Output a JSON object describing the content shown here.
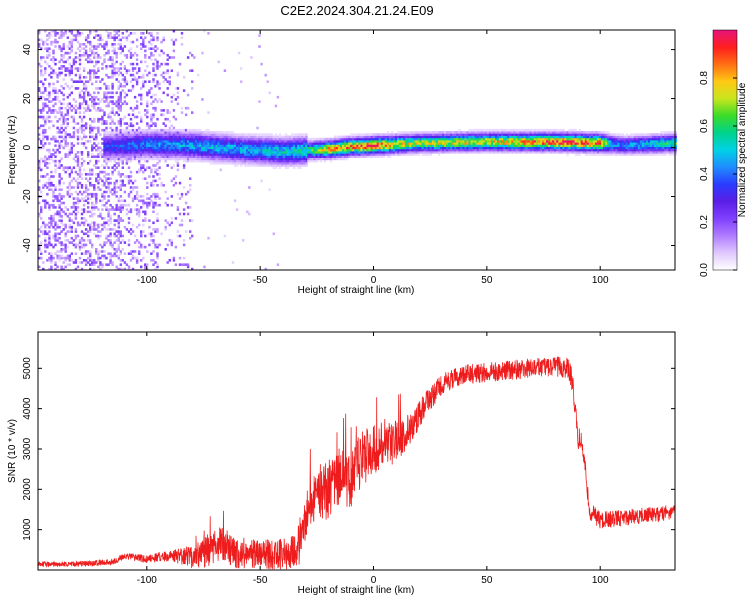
{
  "figure": {
    "title": "C2E2.2024.304.21.24.E09"
  },
  "colors": {
    "snr_line": "#ee1c1c",
    "background": "#ffffff",
    "frame": "#000000",
    "colormap": [
      "#ffffff",
      "#e0c8ff",
      "#b07cff",
      "#8040ff",
      "#5a1ee6",
      "#2a3cff",
      "#1f8cff",
      "#00d2e6",
      "#00d28c",
      "#3cdc28",
      "#c8e61e",
      "#ffc814",
      "#ff6e14",
      "#ff1e1e",
      "#e6147c"
    ]
  },
  "chart_data": [
    {
      "type": "heatmap",
      "title": "",
      "xlabel": "Height of straight line (km)",
      "ylabel": "Frequency (Hz)",
      "xlim": [
        -148,
        133
      ],
      "ylim": [
        -50,
        48
      ],
      "xticks": [
        -100,
        -50,
        0,
        50,
        100
      ],
      "yticks": [
        -40,
        -20,
        0,
        20,
        40
      ],
      "colorbar": {
        "label": "Normalized spectral amplitude",
        "range": [
          0,
          1
        ],
        "ticks": [
          0.0,
          0.2,
          0.4,
          0.6,
          0.8
        ]
      },
      "ridge": {
        "description_x_start": -120,
        "center_freq_hz": [
          [
            -120,
            0.0
          ],
          [
            -100,
            1.0
          ],
          [
            -80,
            0.5
          ],
          [
            -60,
            -1.0
          ],
          [
            -40,
            -2.0
          ],
          [
            -30,
            -1.5
          ],
          [
            -20,
            -1.0
          ],
          [
            -10,
            0.0
          ],
          [
            0,
            0.5
          ],
          [
            10,
            1.0
          ],
          [
            20,
            1.5
          ],
          [
            50,
            2.0
          ],
          [
            80,
            2.0
          ],
          [
            100,
            1.5
          ],
          [
            110,
            0.5
          ],
          [
            133,
            1.5
          ]
        ],
        "peak_amplitude": [
          [
            -120,
            0.35
          ],
          [
            -100,
            0.45
          ],
          [
            -80,
            0.5
          ],
          [
            -60,
            0.5
          ],
          [
            -40,
            0.55
          ],
          [
            -30,
            0.6
          ],
          [
            -20,
            0.85
          ],
          [
            -10,
            0.9
          ],
          [
            0,
            0.95
          ],
          [
            10,
            0.8
          ],
          [
            20,
            0.75
          ],
          [
            50,
            0.8
          ],
          [
            80,
            0.95
          ],
          [
            90,
            0.95
          ],
          [
            100,
            0.9
          ],
          [
            105,
            0.5
          ],
          [
            110,
            0.45
          ],
          [
            133,
            0.65
          ]
        ],
        "noise_region_x": [
          -148,
          -80
        ]
      }
    },
    {
      "type": "line",
      "title": "",
      "xlabel": "Height of straight line (km)",
      "ylabel": "SNR (10 * v/v)",
      "xlim": [
        -148,
        133
      ],
      "ylim": [
        0,
        5900
      ],
      "xticks": [
        -100,
        -50,
        0,
        50,
        100
      ],
      "yticks": [
        1000,
        2000,
        3000,
        4000,
        5000
      ],
      "series": [
        {
          "envelope": [
            [
              -148,
              200
            ],
            [
              -130,
              220
            ],
            [
              -115,
              280
            ],
            [
              -110,
              420
            ],
            [
              -100,
              380
            ],
            [
              -90,
              480
            ],
            [
              -80,
              620
            ],
            [
              -72,
              900
            ],
            [
              -68,
              1100
            ],
            [
              -60,
              820
            ],
            [
              -50,
              750
            ],
            [
              -42,
              780
            ],
            [
              -36,
              900
            ],
            [
              -32,
              1200
            ],
            [
              -28,
              2400
            ],
            [
              -20,
              2700
            ],
            [
              -15,
              3100
            ],
            [
              -10,
              3000
            ],
            [
              -5,
              3500
            ],
            [
              0,
              3600
            ],
            [
              5,
              3800
            ],
            [
              10,
              3700
            ],
            [
              15,
              3900
            ],
            [
              20,
              4200
            ],
            [
              25,
              4550
            ],
            [
              30,
              4850
            ],
            [
              35,
              5000
            ],
            [
              40,
              5100
            ],
            [
              50,
              5150
            ],
            [
              60,
              5200
            ],
            [
              70,
              5250
            ],
            [
              80,
              5300
            ],
            [
              86,
              5250
            ],
            [
              88,
              4900
            ],
            [
              90,
              3600
            ],
            [
              92,
              3400
            ],
            [
              94,
              2500
            ],
            [
              95,
              1700
            ],
            [
              100,
              1450
            ],
            [
              110,
              1500
            ],
            [
              120,
              1550
            ],
            [
              133,
              1600
            ]
          ],
          "noise_amplitude": [
            [
              -148,
              120
            ],
            [
              -110,
              160
            ],
            [
              -90,
              260
            ],
            [
              -70,
              900
            ],
            [
              -50,
              700
            ],
            [
              -35,
              900
            ],
            [
              -25,
              1400
            ],
            [
              -10,
              1500
            ],
            [
              0,
              1300
            ],
            [
              10,
              1100
            ],
            [
              20,
              700
            ],
            [
              30,
              500
            ],
            [
              60,
              500
            ],
            [
              85,
              500
            ],
            [
              90,
              600
            ],
            [
              95,
              450
            ],
            [
              133,
              350
            ]
          ]
        }
      ]
    }
  ]
}
